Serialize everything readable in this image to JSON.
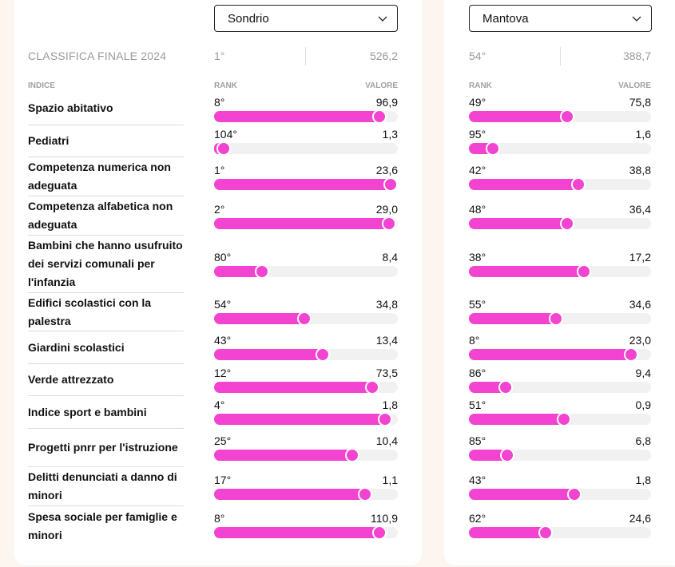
{
  "colors": {
    "accent": "#f244d0",
    "track": "#f1f1f1",
    "background": "#fdf5f0"
  },
  "summary": {
    "label": "CLASSIFICA FINALE 2024"
  },
  "headers": {
    "indice": "INDICE",
    "rank": "RANK",
    "valore": "VALORE"
  },
  "indices": [
    "Spazio abitativo",
    "Pediatri",
    "Competenza numerica non adeguata",
    "Competenza alfabetica non adeguata",
    "Bambini che hanno usufruito dei servizi comunali per l'infanzia",
    "Edifici scolastici con la palestra",
    "Giardini scolastici",
    "Verde attrezzato",
    "Indice sport e bambini",
    "Progetti pnrr per l'istruzione",
    "Delitti denunciati a danno di minori",
    "Spesa sociale per famiglie e minori"
  ],
  "provinces": [
    {
      "selected": "Sondrio",
      "final_rank": "1°",
      "final_value": "526,2",
      "metrics": [
        {
          "rank": "8°",
          "value": "96,9",
          "fill": 0.9
        },
        {
          "rank": "104°",
          "value": "1,3",
          "fill": 0.05
        },
        {
          "rank": "1°",
          "value": "23,6",
          "fill": 0.96
        },
        {
          "rank": "2°",
          "value": "29,0",
          "fill": 0.95
        },
        {
          "rank": "80°",
          "value": "8,4",
          "fill": 0.26
        },
        {
          "rank": "54°",
          "value": "34,8",
          "fill": 0.49
        },
        {
          "rank": "43°",
          "value": "13,4",
          "fill": 0.59
        },
        {
          "rank": "12°",
          "value": "73,5",
          "fill": 0.86
        },
        {
          "rank": "4°",
          "value": "1,8",
          "fill": 0.93
        },
        {
          "rank": "25°",
          "value": "10,4",
          "fill": 0.75
        },
        {
          "rank": "17°",
          "value": "1,1",
          "fill": 0.82
        },
        {
          "rank": "8°",
          "value": "110,9",
          "fill": 0.9
        }
      ]
    },
    {
      "selected": "Mantova",
      "final_rank": "54°",
      "final_value": "388,7",
      "metrics": [
        {
          "rank": "49°",
          "value": "75,8",
          "fill": 0.54
        },
        {
          "rank": "95°",
          "value": "1,6",
          "fill": 0.13
        },
        {
          "rank": "42°",
          "value": "38,8",
          "fill": 0.6
        },
        {
          "rank": "48°",
          "value": "36,4",
          "fill": 0.54
        },
        {
          "rank": "38°",
          "value": "17,2",
          "fill": 0.63
        },
        {
          "rank": "55°",
          "value": "34,6",
          "fill": 0.48
        },
        {
          "rank": "8°",
          "value": "23,0",
          "fill": 0.89
        },
        {
          "rank": "86°",
          "value": "9,4",
          "fill": 0.2
        },
        {
          "rank": "51°",
          "value": "0,9",
          "fill": 0.52
        },
        {
          "rank": "85°",
          "value": "6,8",
          "fill": 0.21
        },
        {
          "rank": "43°",
          "value": "1,8",
          "fill": 0.58
        },
        {
          "rank": "62°",
          "value": "24,6",
          "fill": 0.42
        }
      ]
    }
  ]
}
